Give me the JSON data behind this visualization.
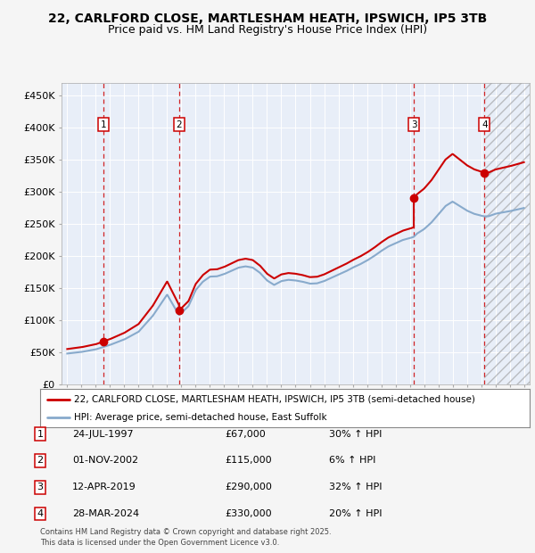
{
  "title_line1": "22, CARLFORD CLOSE, MARTLESHAM HEATH, IPSWICH, IP5 3TB",
  "title_line2": "Price paid vs. HM Land Registry's House Price Index (HPI)",
  "ylim": [
    0,
    470000
  ],
  "yticks": [
    0,
    50000,
    100000,
    150000,
    200000,
    250000,
    300000,
    350000,
    400000,
    450000
  ],
  "ytick_labels": [
    "£0",
    "£50K",
    "£100K",
    "£150K",
    "£200K",
    "£250K",
    "£300K",
    "£350K",
    "£400K",
    "£450K"
  ],
  "xmin": 1994.6,
  "xmax": 2027.4,
  "sale_color": "#cc0000",
  "hpi_color": "#88aacc",
  "sale_label": "22, CARLFORD CLOSE, MARTLESHAM HEATH, IPSWICH, IP5 3TB (semi-detached house)",
  "hpi_label": "HPI: Average price, semi-detached house, East Suffolk",
  "transactions": [
    {
      "num": 1,
      "date_label": "24-JUL-1997",
      "year": 1997.56,
      "price": 67000,
      "pct": "30%",
      "direction": "↑"
    },
    {
      "num": 2,
      "date_label": "01-NOV-2002",
      "year": 2002.83,
      "price": 115000,
      "pct": "6%",
      "direction": "↑"
    },
    {
      "num": 3,
      "date_label": "12-APR-2019",
      "year": 2019.28,
      "price": 290000,
      "pct": "32%",
      "direction": "↑"
    },
    {
      "num": 4,
      "date_label": "28-MAR-2024",
      "year": 2024.23,
      "price": 330000,
      "pct": "20%",
      "direction": "↑"
    }
  ],
  "footnote1": "Contains HM Land Registry data © Crown copyright and database right 2025.",
  "footnote2": "This data is licensed under the Open Government Licence v3.0.",
  "hpi_series_x": [
    1995.0,
    1995.08,
    1995.17,
    1995.25,
    1995.33,
    1995.42,
    1995.5,
    1995.58,
    1995.67,
    1995.75,
    1995.83,
    1995.92,
    1996.0,
    1996.08,
    1996.17,
    1996.25,
    1996.33,
    1996.42,
    1996.5,
    1996.58,
    1996.67,
    1996.75,
    1996.83,
    1996.92,
    1997.0,
    1997.08,
    1997.17,
    1997.25,
    1997.33,
    1997.42,
    1997.5,
    1997.58,
    1997.67,
    1997.75,
    1997.83,
    1997.92,
    1998.0,
    1998.08,
    1998.17,
    1998.25,
    1998.33,
    1998.42,
    1998.5,
    1998.58,
    1998.67,
    1998.75,
    1998.83,
    1998.92,
    1999.0,
    1999.08,
    1999.17,
    1999.25,
    1999.33,
    1999.42,
    1999.5,
    1999.58,
    1999.67,
    1999.75,
    1999.83,
    1999.92,
    2000.0,
    2000.08,
    2000.17,
    2000.25,
    2000.33,
    2000.42,
    2000.5,
    2000.58,
    2000.67,
    2000.75,
    2000.83,
    2000.92,
    2001.0,
    2001.08,
    2001.17,
    2001.25,
    2001.33,
    2001.42,
    2001.5,
    2001.58,
    2001.67,
    2001.75,
    2001.83,
    2001.92,
    2002.0,
    2002.08,
    2002.17,
    2002.25,
    2002.33,
    2002.42,
    2002.5,
    2002.58,
    2002.67,
    2002.75,
    2002.83,
    2002.92,
    2003.0,
    2003.08,
    2003.17,
    2003.25,
    2003.33,
    2003.42,
    2003.5,
    2003.58,
    2003.67,
    2003.75,
    2003.83,
    2003.92,
    2004.0,
    2004.08,
    2004.17,
    2004.25,
    2004.33,
    2004.42,
    2004.5,
    2004.58,
    2004.67,
    2004.75,
    2004.83,
    2004.92,
    2005.0,
    2005.08,
    2005.17,
    2005.25,
    2005.33,
    2005.42,
    2005.5,
    2005.58,
    2005.67,
    2005.75,
    2005.83,
    2005.92,
    2006.0,
    2006.08,
    2006.17,
    2006.25,
    2006.33,
    2006.42,
    2006.5,
    2006.58,
    2006.67,
    2006.75,
    2006.83,
    2006.92,
    2007.0,
    2007.08,
    2007.17,
    2007.25,
    2007.33,
    2007.42,
    2007.5,
    2007.58,
    2007.67,
    2007.75,
    2007.83,
    2007.92,
    2008.0,
    2008.08,
    2008.17,
    2008.25,
    2008.33,
    2008.42,
    2008.5,
    2008.58,
    2008.67,
    2008.75,
    2008.83,
    2008.92,
    2009.0,
    2009.08,
    2009.17,
    2009.25,
    2009.33,
    2009.42,
    2009.5,
    2009.58,
    2009.67,
    2009.75,
    2009.83,
    2009.92,
    2010.0,
    2010.08,
    2010.17,
    2010.25,
    2010.33,
    2010.42,
    2010.5,
    2010.58,
    2010.67,
    2010.75,
    2010.83,
    2010.92,
    2011.0,
    2011.08,
    2011.17,
    2011.25,
    2011.33,
    2011.42,
    2011.5,
    2011.58,
    2011.67,
    2011.75,
    2011.83,
    2011.92,
    2012.0,
    2012.08,
    2012.17,
    2012.25,
    2012.33,
    2012.42,
    2012.5,
    2012.58,
    2012.67,
    2012.75,
    2012.83,
    2012.92,
    2013.0,
    2013.08,
    2013.17,
    2013.25,
    2013.33,
    2013.42,
    2013.5,
    2013.58,
    2013.67,
    2013.75,
    2013.83,
    2013.92,
    2014.0,
    2014.08,
    2014.17,
    2014.25,
    2014.33,
    2014.42,
    2014.5,
    2014.58,
    2014.67,
    2014.75,
    2014.83,
    2014.92,
    2015.0,
    2015.08,
    2015.17,
    2015.25,
    2015.33,
    2015.42,
    2015.5,
    2015.58,
    2015.67,
    2015.75,
    2015.83,
    2015.92,
    2016.0,
    2016.08,
    2016.17,
    2016.25,
    2016.33,
    2016.42,
    2016.5,
    2016.58,
    2016.67,
    2016.75,
    2016.83,
    2016.92,
    2017.0,
    2017.08,
    2017.17,
    2017.25,
    2017.33,
    2017.42,
    2017.5,
    2017.58,
    2017.67,
    2017.75,
    2017.83,
    2017.92,
    2018.0,
    2018.08,
    2018.17,
    2018.25,
    2018.33,
    2018.42,
    2018.5,
    2018.58,
    2018.67,
    2018.75,
    2018.83,
    2018.92,
    2019.0,
    2019.08,
    2019.17,
    2019.25,
    2019.33,
    2019.42,
    2019.5,
    2019.58,
    2019.67,
    2019.75,
    2019.83,
    2019.92,
    2020.0,
    2020.08,
    2020.17,
    2020.25,
    2020.33,
    2020.42,
    2020.5,
    2020.58,
    2020.67,
    2020.75,
    2020.83,
    2020.92,
    2021.0,
    2021.08,
    2021.17,
    2021.25,
    2021.33,
    2021.42,
    2021.5,
    2021.58,
    2021.67,
    2021.75,
    2021.83,
    2021.92,
    2022.0,
    2022.08,
    2022.17,
    2022.25,
    2022.33,
    2022.42,
    2022.5,
    2022.58,
    2022.67,
    2022.75,
    2022.83,
    2022.92,
    2023.0,
    2023.08,
    2023.17,
    2023.25,
    2023.33,
    2023.42,
    2023.5,
    2023.58,
    2023.67,
    2023.75,
    2023.83,
    2023.92,
    2024.0,
    2024.08,
    2024.17,
    2024.25,
    2024.33,
    2024.42,
    2024.5,
    2024.58,
    2024.67,
    2024.75,
    2024.83,
    2024.92,
    2025.0
  ],
  "hpi_series_y": [
    48000,
    48200,
    48400,
    48500,
    48600,
    48700,
    48800,
    49000,
    49200,
    49400,
    49600,
    49800,
    50000,
    50300,
    50600,
    50900,
    51200,
    51500,
    51800,
    52100,
    52400,
    52700,
    53000,
    53400,
    53800,
    54300,
    54800,
    55300,
    55800,
    56300,
    56800,
    57400,
    58000,
    58600,
    59200,
    59800,
    60400,
    61000,
    61600,
    62200,
    62800,
    63400,
    64000,
    64700,
    65400,
    66100,
    66800,
    67500,
    68200,
    69200,
    70200,
    71200,
    72200,
    73500,
    74800,
    76200,
    77600,
    79100,
    80600,
    82300,
    84000,
    86000,
    88000,
    90000,
    92000,
    94000,
    96000,
    98500,
    101000,
    103500,
    106000,
    108500,
    111000,
    113500,
    116000,
    118500,
    121000,
    123500,
    126000,
    128500,
    131000,
    133500,
    136000,
    138500,
    141000,
    143500,
    146000,
    148500,
    151000,
    153500,
    156000,
    158500,
    161000,
    163500,
    108000,
    110000,
    112000,
    114000,
    116500,
    119000,
    121500,
    124000,
    126500,
    129000,
    131500,
    134000,
    136500,
    140000,
    143500,
    147000,
    150500,
    154000,
    157500,
    161000,
    163500,
    165000,
    166500,
    167500,
    168000,
    168500,
    168800,
    169000,
    169200,
    169400,
    169600,
    169900,
    170200,
    170600,
    171000,
    171500,
    172000,
    172800,
    173600,
    174500,
    175500,
    176500,
    177500,
    178500,
    179500,
    180000,
    180500,
    181000,
    181500,
    182500,
    183500,
    184500,
    185000,
    185200,
    185300,
    185100,
    184800,
    184400,
    183900,
    183300,
    182600,
    181800,
    180900,
    179900,
    178800,
    177600,
    176300,
    174900,
    173400,
    171800,
    170100,
    168300,
    166400,
    164400,
    162300,
    160100,
    157800,
    156000,
    154500,
    153200,
    152300,
    151800,
    151600,
    151700,
    152000,
    152500,
    153200,
    154000,
    155000,
    156100,
    157300,
    158600,
    159900,
    161100,
    162200,
    163100,
    163800,
    164300,
    164700,
    164900,
    165000,
    164900,
    164700,
    164400,
    164000,
    163500,
    162900,
    162200,
    161400,
    160600,
    159700,
    158800,
    157900,
    157100,
    156500,
    156000,
    155800,
    155900,
    156300,
    157000,
    157900,
    159000,
    160300,
    161600,
    162900,
    164200,
    165400,
    166500,
    167500,
    168300,
    169000,
    169600,
    170100,
    170700,
    171400,
    172200,
    173100,
    174100,
    175100,
    176100,
    177100,
    178000,
    178900,
    179700,
    180500,
    181300,
    182100,
    182900,
    183700,
    184500,
    185300,
    186100,
    186900,
    187700,
    188400,
    189100,
    189700,
    190400,
    191100,
    191900,
    192700,
    193600,
    194500,
    195400,
    196400,
    197300,
    198300,
    199300,
    200300,
    201400,
    202500,
    203600,
    204800,
    206000,
    207200,
    208500,
    209800,
    211100,
    212400,
    213700,
    215000,
    216000,
    217000,
    218000,
    219100,
    220200,
    221300,
    222400,
    223400,
    224200,
    225000,
    225700,
    226300,
    227100,
    227900,
    228700,
    229500,
    230300,
    231200,
    232200,
    233200,
    234300,
    235500,
    236700,
    238000,
    239400,
    240800,
    242300,
    243800,
    245400,
    247000,
    248700,
    250400,
    252100,
    253900,
    255700,
    257500,
    259600,
    261700,
    264000,
    266300,
    268700,
    271200,
    273700,
    276200,
    278600,
    280900,
    283000,
    285000,
    286300,
    287400,
    288200,
    288800,
    289200,
    289500,
    289700,
    289800,
    289800,
    289700,
    289400,
    289000,
    288400,
    287700,
    286900,
    286000,
    284900,
    283700,
    282500,
    281200,
    279900,
    278600,
    277300,
    276000,
    275000,
    274100,
    273400,
    272800,
    272200,
    271700,
    271300,
    270800,
    270200,
    269500,
    268600,
    267600,
    266800,
    266100,
    265600,
    265300,
    265200,
    265200,
    265400,
    265600,
    265900,
    266200,
    266500,
    266800
  ],
  "background_color": "#f5f5f5",
  "plot_bg_color": "#e8eef8"
}
